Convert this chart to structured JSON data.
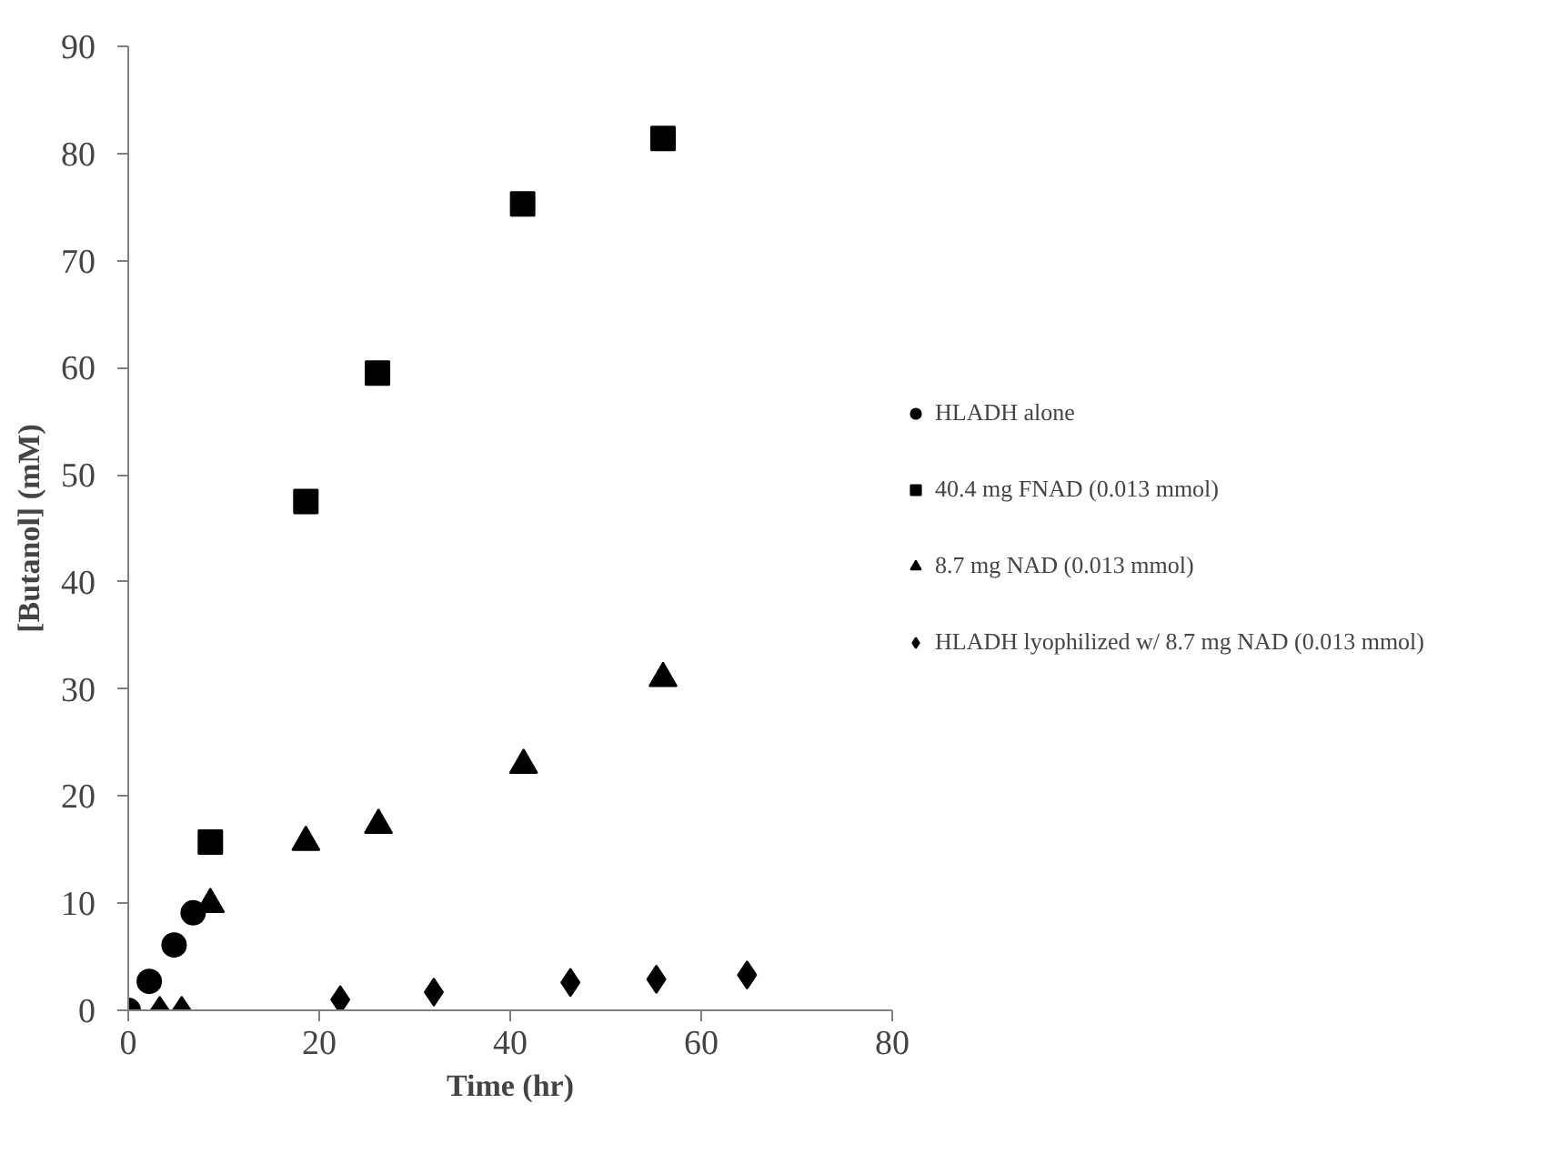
{
  "chart_data": {
    "type": "scatter",
    "xlabel": "Time (hr)",
    "ylabel": "[Butanol] (mM)",
    "xlim": [
      0,
      80
    ],
    "xticks": [
      0,
      20,
      40,
      60,
      80
    ],
    "ylim": [
      0,
      90
    ],
    "yticks": [
      0,
      10,
      20,
      30,
      40,
      50,
      60,
      70,
      80,
      90
    ],
    "grid": false,
    "legend": "right",
    "series": [
      {
        "name": "HLADH alone",
        "color": "#000000",
        "marker": "circle",
        "x": [
          0,
          2.2,
          4.8,
          6.8
        ],
        "values": [
          0,
          2.7,
          6.1,
          9.1
        ]
      },
      {
        "name": "40.4 mg FNAD (0.013 mmol)",
        "color": "#000000",
        "marker": "square",
        "x": [
          8.6,
          18.6,
          26.1,
          41.3,
          56.0
        ],
        "values": [
          15.7,
          47.5,
          59.5,
          75.3,
          81.4
        ]
      },
      {
        "name": "8.7 mg NAD (0.013 mmol)",
        "color": "#000000",
        "marker": "triangle",
        "x": [
          8.6,
          18.6,
          26.2,
          41.4,
          56.0
        ],
        "values": [
          9.9,
          15.7,
          17.3,
          22.9,
          31.0
        ]
      },
      {
        "name": "HLADH lyophilized w/ 8.7 mg NAD (0.013 mmol)",
        "color": "#000000",
        "marker": "diamond",
        "x": [
          3.3,
          5.6,
          22.2,
          32.0,
          46.3,
          55.3,
          64.8
        ],
        "values": [
          0,
          0,
          1.0,
          1.7,
          2.6,
          2.9,
          3.3
        ]
      }
    ]
  }
}
